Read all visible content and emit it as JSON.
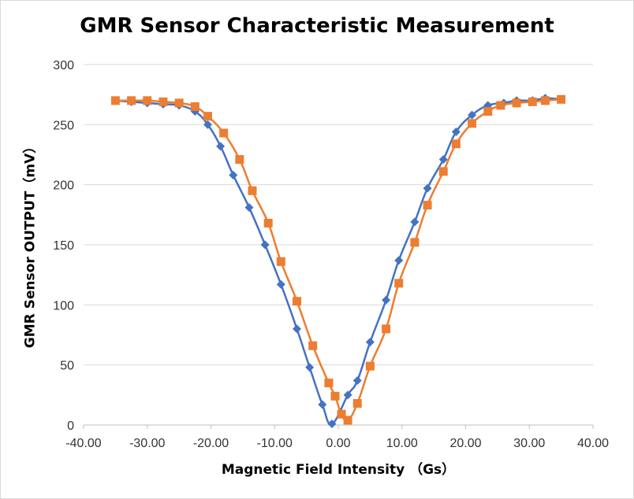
{
  "chart_data": {
    "type": "scatter",
    "title": "GMR Sensor Characteristic Measurement",
    "xlabel": "Magnetic Field Intensity （Gs）",
    "ylabel": "GMR Sensor OUTPUT（mV）",
    "xlim": [
      -40,
      40
    ],
    "ylim": [
      0,
      300
    ],
    "x_ticks": [
      "-40.00",
      "-30.00",
      "-20.00",
      "-10.00",
      "0.00",
      "10.00",
      "20.00",
      "30.00",
      "40.00"
    ],
    "y_ticks": [
      "0",
      "50",
      "100",
      "150",
      "200",
      "250",
      "300"
    ],
    "grid": "horizontal",
    "legend": "none",
    "series": [
      {
        "color": "#4472C4",
        "marker": "diamond",
        "smooth": true,
        "x": [
          -35,
          -32.5,
          -30,
          -27.5,
          -25,
          -22.5,
          -20.5,
          -18.5,
          -16.5,
          -14,
          -11.5,
          -9,
          -6.5,
          -4.5,
          -2.5,
          -1,
          1.5,
          3,
          5,
          7.5,
          9.5,
          12,
          14,
          16.5,
          18.5,
          21,
          23.5,
          26,
          28,
          30.5,
          32.5,
          35
        ],
        "y": [
          270,
          269,
          268,
          267,
          266,
          261,
          250,
          232,
          208,
          181,
          150,
          117,
          80,
          48,
          17,
          1,
          25,
          37,
          69,
          104,
          137,
          169,
          197,
          221,
          244,
          258,
          266,
          268,
          270,
          270,
          272,
          271
        ]
      },
      {
        "color": "#ED7D31",
        "marker": "square",
        "smooth": true,
        "x": [
          -35,
          -32.5,
          -30,
          -27.5,
          -25,
          -22.5,
          -20.5,
          -18,
          -15.5,
          -13.5,
          -11,
          -9,
          -6.5,
          -4,
          -1.5,
          -0.5,
          0.5,
          1.5,
          3,
          5,
          7.5,
          9.5,
          12,
          14,
          16.5,
          18.5,
          21,
          23.5,
          25.5,
          28,
          30.5,
          32.5,
          35
        ],
        "y": [
          270,
          270,
          270,
          269,
          268,
          265,
          257,
          243,
          221,
          195,
          168,
          136,
          103,
          66,
          35,
          24,
          9,
          4,
          18,
          49,
          80,
          118,
          152,
          183,
          211,
          234,
          251,
          261,
          266,
          268,
          269,
          270,
          271
        ]
      }
    ]
  }
}
